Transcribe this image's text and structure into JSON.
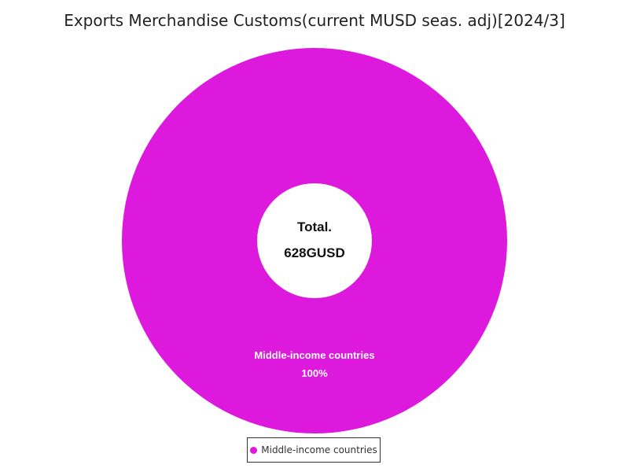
{
  "chart_data": {
    "type": "pie",
    "title": "Exports Merchandise Customs(current MUSD seas. adj)[2024/3]",
    "center_label": "Total.",
    "center_value": "628GUSD",
    "series": [
      {
        "name": "Middle-income countries",
        "value": 100,
        "percent_label": "100%",
        "color": "#dc19dc"
      }
    ],
    "legend_placement": "bottom"
  }
}
